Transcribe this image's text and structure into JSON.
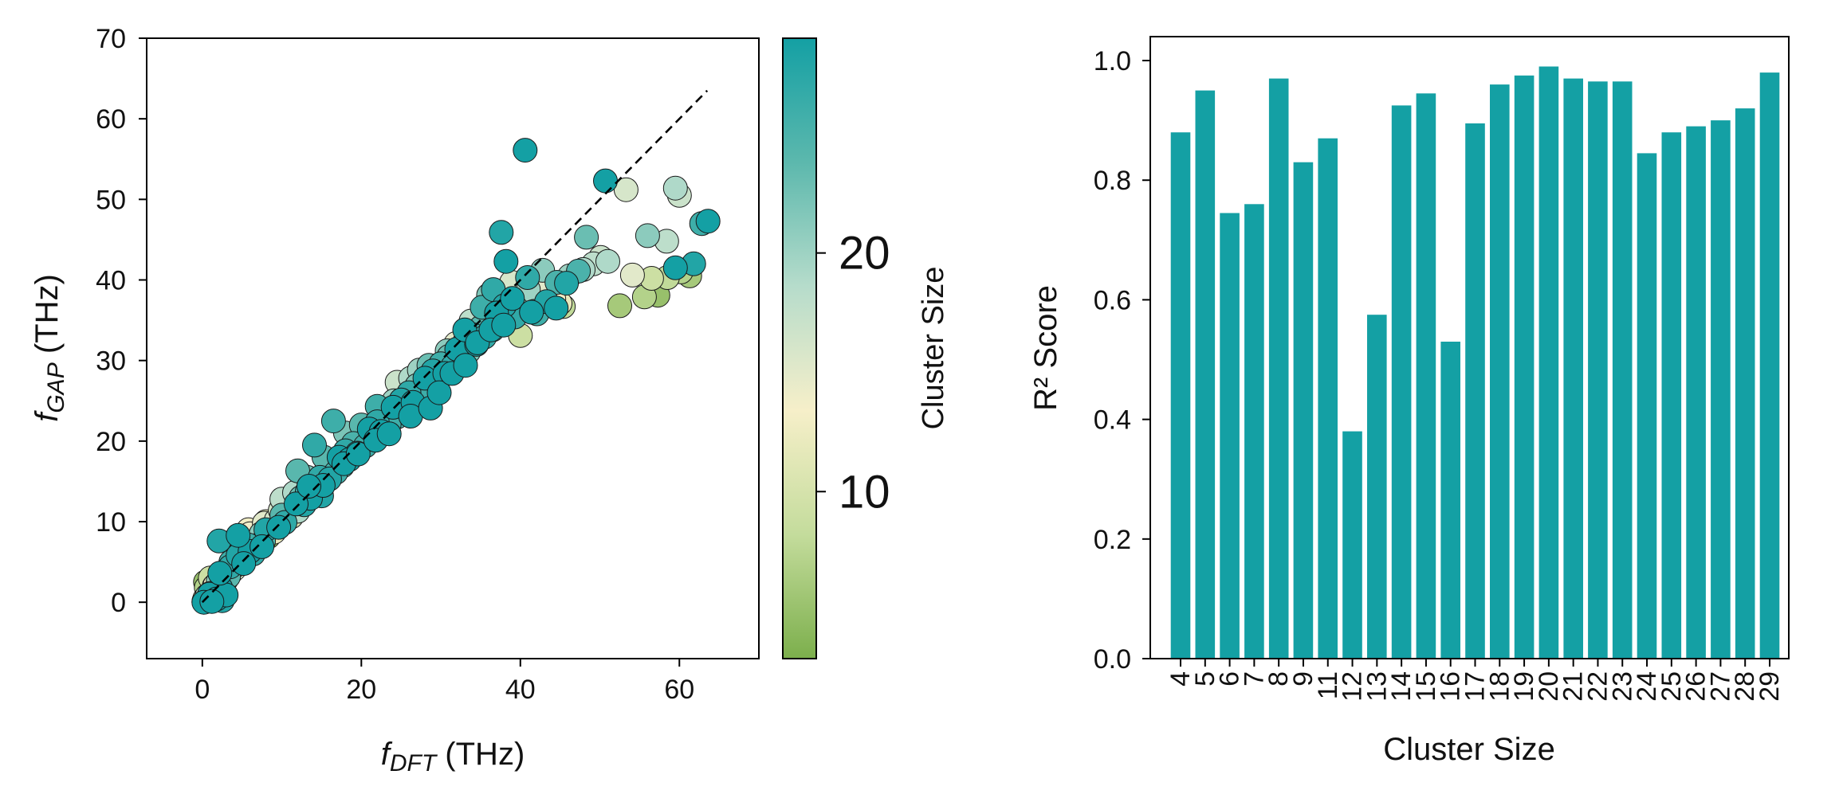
{
  "chart_data": [
    {
      "type": "scatter",
      "xlabel_main": "f",
      "xlabel_sub": "DFT",
      "xlabel_unit": " (THz)",
      "ylabel_main": "f",
      "ylabel_sub": "GAP",
      "ylabel_unit": " (THz)",
      "xlim": [
        -7,
        70
      ],
      "ylim": [
        -7,
        70
      ],
      "xticks": [
        0,
        20,
        40,
        60
      ],
      "yticks": [
        0,
        10,
        20,
        30,
        40,
        50,
        60,
        70
      ],
      "diagonal": [
        0,
        63.5
      ],
      "colorbar": {
        "label": "Cluster Size",
        "range": [
          3,
          29
        ],
        "ticks": [
          10,
          20
        ],
        "colors": [
          "#7caf4c",
          "#c4dc9c",
          "#f6efc9",
          "#b6dccb",
          "#5cb8ad",
          "#14a0a4"
        ]
      },
      "points": [
        [
          0.2,
          0.1,
          6
        ],
        [
          0.3,
          0.4,
          10
        ],
        [
          0.5,
          0.2,
          14
        ],
        [
          0.6,
          0.8,
          18
        ],
        [
          0.8,
          0.5,
          22
        ],
        [
          1.0,
          1.1,
          26
        ],
        [
          1.1,
          0.3,
          28
        ],
        [
          1.3,
          1.6,
          5
        ],
        [
          1.5,
          0.9,
          9
        ],
        [
          1.6,
          2.1,
          13
        ],
        [
          1.8,
          1.4,
          17
        ],
        [
          2.0,
          2.6,
          21
        ],
        [
          2.1,
          0.7,
          25
        ],
        [
          2.3,
          1.8,
          29
        ],
        [
          2.5,
          3.1,
          4
        ],
        [
          2.6,
          2.2,
          8
        ],
        [
          2.8,
          3.6,
          12
        ],
        [
          3.0,
          2.8,
          16
        ],
        [
          3.1,
          4.0,
          20
        ],
        [
          3.3,
          3.2,
          24
        ],
        [
          3.5,
          4.4,
          27
        ],
        [
          3.6,
          3.7,
          7
        ],
        [
          3.8,
          4.9,
          11
        ],
        [
          4.0,
          4.1,
          15
        ],
        [
          4.1,
          5.3,
          19
        ],
        [
          4.3,
          4.6,
          23
        ],
        [
          4.5,
          5.8,
          28
        ],
        [
          4.6,
          5.0,
          6
        ],
        [
          4.8,
          6.2,
          10
        ],
        [
          5.0,
          5.4,
          14
        ],
        [
          5.3,
          6.6,
          18
        ],
        [
          5.5,
          5.9,
          22
        ],
        [
          5.8,
          7.1,
          26
        ],
        [
          6.0,
          6.3,
          29
        ],
        [
          6.3,
          7.5,
          5
        ],
        [
          6.5,
          6.8,
          9
        ],
        [
          6.8,
          8.0,
          13
        ],
        [
          7.0,
          7.2,
          17
        ],
        [
          7.4,
          8.5,
          21
        ],
        [
          7.7,
          7.6,
          25
        ],
        [
          8.0,
          9.0,
          28
        ],
        [
          8.3,
          8.1,
          4
        ],
        [
          8.6,
          9.6,
          8
        ],
        [
          9.0,
          8.7,
          12
        ],
        [
          9.3,
          10.2,
          16
        ],
        [
          9.6,
          9.3,
          20
        ],
        [
          10.0,
          10.8,
          24
        ],
        [
          10.4,
          9.9,
          27
        ],
        [
          10.8,
          11.4,
          7
        ],
        [
          11.2,
          10.6,
          11
        ],
        [
          11.6,
          12.2,
          15
        ],
        [
          12.0,
          11.3,
          19
        ],
        [
          12.4,
          13.0,
          23
        ],
        [
          12.8,
          12.1,
          28
        ],
        [
          13.2,
          13.8,
          26
        ],
        [
          13.6,
          12.9,
          29
        ],
        [
          14.0,
          14.6,
          22
        ],
        [
          14.4,
          13.7,
          25
        ],
        [
          14.8,
          15.5,
          27
        ],
        [
          15.2,
          14.5,
          29
        ],
        [
          15.6,
          16.4,
          24
        ],
        [
          16.0,
          15.3,
          28
        ],
        [
          16.4,
          17.2,
          20
        ],
        [
          16.8,
          16.1,
          26
        ],
        [
          17.2,
          18.0,
          29
        ],
        [
          17.6,
          16.9,
          23
        ],
        [
          18.0,
          18.8,
          27
        ],
        [
          18.5,
          17.7,
          29
        ],
        [
          19.0,
          19.7,
          25
        ],
        [
          19.5,
          18.5,
          28
        ],
        [
          20.0,
          20.6,
          22
        ],
        [
          20.5,
          19.4,
          26
        ],
        [
          21.0,
          21.5,
          29
        ],
        [
          21.5,
          20.3,
          24
        ],
        [
          22.0,
          22.4,
          27
        ],
        [
          22.5,
          21.2,
          29
        ],
        [
          23.0,
          23.3,
          21
        ],
        [
          23.5,
          22.1,
          26
        ],
        [
          24.0,
          24.2,
          29
        ],
        [
          24.5,
          23.0,
          25
        ],
        [
          25.0,
          25.1,
          28
        ],
        [
          25.5,
          23.9,
          23
        ],
        [
          26.0,
          26.0,
          27
        ],
        [
          26.5,
          24.8,
          29
        ],
        [
          27.0,
          26.9,
          22
        ],
        [
          27.5,
          25.7,
          26
        ],
        [
          28.0,
          27.8,
          29
        ],
        [
          28.5,
          26.6,
          24
        ],
        [
          29.0,
          28.7,
          28
        ],
        [
          29.5,
          27.5,
          21
        ],
        [
          30.0,
          29.6,
          26
        ],
        [
          30.5,
          28.4,
          29
        ],
        [
          31.0,
          30.5,
          23
        ],
        [
          31.5,
          29.3,
          27
        ],
        [
          32.0,
          31.4,
          29
        ],
        [
          32.5,
          30.2,
          25
        ],
        [
          33.0,
          32.3,
          28
        ],
        [
          33.5,
          31.1,
          22
        ],
        [
          34.0,
          33.2,
          26
        ],
        [
          34.5,
          32.0,
          29
        ],
        [
          35.0,
          34.1,
          24
        ],
        [
          35.5,
          32.9,
          27
        ],
        [
          36.0,
          35.0,
          21
        ],
        [
          36.5,
          33.8,
          26
        ],
        [
          37.0,
          35.9,
          29
        ],
        [
          37.5,
          34.7,
          23
        ],
        [
          38.0,
          36.8,
          28
        ],
        [
          38.5,
          35.6,
          25
        ],
        [
          39.0,
          37.7,
          29
        ],
        [
          39.5,
          36.5,
          22
        ],
        [
          40.0,
          33.1,
          9
        ],
        [
          44.2,
          37.6,
          13
        ],
        [
          45.4,
          36.7,
          8
        ],
        [
          42.1,
          35.8,
          26
        ],
        [
          43.3,
          37.3,
          28
        ],
        [
          41.7,
          36.1,
          24
        ],
        [
          40.9,
          40.3,
          27
        ],
        [
          42.8,
          41.2,
          21
        ],
        [
          44.6,
          39.7,
          25
        ],
        [
          46.2,
          40.5,
          20
        ],
        [
          47.9,
          41.3,
          19
        ],
        [
          49.2,
          42.0,
          18
        ],
        [
          50.1,
          42.8,
          17
        ],
        [
          51.0,
          42.3,
          19
        ],
        [
          48.3,
          45.3,
          23
        ],
        [
          52.5,
          36.8,
          6
        ],
        [
          55.6,
          37.9,
          7
        ],
        [
          57.3,
          38.1,
          5
        ],
        [
          58.5,
          40.3,
          8
        ],
        [
          60.2,
          41.0,
          7
        ],
        [
          61.3,
          40.5,
          6
        ],
        [
          56.5,
          40.2,
          9
        ],
        [
          59.5,
          41.5,
          29
        ],
        [
          61.8,
          42.0,
          28
        ],
        [
          54.1,
          40.6,
          15
        ],
        [
          56.0,
          45.5,
          21
        ],
        [
          58.4,
          44.8,
          18
        ],
        [
          59.5,
          51.4,
          19
        ],
        [
          60.0,
          50.5,
          17
        ],
        [
          53.3,
          51.2,
          16
        ],
        [
          62.8,
          47.0,
          26
        ],
        [
          63.6,
          47.3,
          29
        ],
        [
          50.7,
          52.3,
          29
        ],
        [
          40.6,
          56.1,
          29
        ],
        [
          37.6,
          45.9,
          28
        ],
        [
          38.2,
          42.3,
          29
        ],
        [
          36.6,
          38.8,
          27
        ],
        [
          35.2,
          36.6,
          26
        ],
        [
          33.0,
          33.8,
          29
        ],
        [
          30.8,
          31.2,
          21
        ],
        [
          28.5,
          29.4,
          23
        ],
        [
          26.2,
          27.8,
          19
        ],
        [
          24.1,
          25.0,
          20
        ],
        [
          22.0,
          24.3,
          26
        ],
        [
          20.0,
          22.0,
          24
        ],
        [
          18.0,
          21.0,
          22
        ],
        [
          16.5,
          22.5,
          26
        ],
        [
          14.1,
          19.5,
          27
        ],
        [
          12.0,
          16.3,
          24
        ],
        [
          10.0,
          12.8,
          18
        ],
        [
          8.0,
          10.0,
          12
        ],
        [
          6.0,
          8.5,
          14
        ],
        [
          4.5,
          8.3,
          29
        ],
        [
          2.1,
          7.6,
          28
        ],
        [
          1.0,
          3.0,
          9
        ],
        [
          0.5,
          1.8,
          7
        ],
        [
          0.4,
          2.5,
          5
        ],
        [
          1.5,
          2.0,
          11
        ],
        [
          0.9,
          1.0,
          29
        ],
        [
          1.8,
          0.4,
          29
        ],
        [
          2.5,
          0.2,
          28
        ],
        [
          3.0,
          0.9,
          29
        ],
        [
          0.2,
          0.0,
          29
        ],
        [
          1.2,
          0.1,
          29
        ],
        [
          2.2,
          3.6,
          29
        ],
        [
          3.6,
          5.0,
          26
        ],
        [
          5.2,
          4.8,
          29
        ],
        [
          6.4,
          6.0,
          27
        ],
        [
          7.5,
          6.9,
          29
        ],
        [
          9.6,
          9.3,
          29
        ],
        [
          11.8,
          12.2,
          29
        ],
        [
          13.4,
          14.4,
          29
        ],
        [
          15.0,
          13.2,
          28
        ],
        [
          17.8,
          17.2,
          29
        ],
        [
          19.6,
          18.4,
          29
        ],
        [
          21.8,
          20.1,
          29
        ],
        [
          23.5,
          20.9,
          29
        ],
        [
          26.2,
          23.1,
          29
        ],
        [
          28.7,
          24.1,
          29
        ],
        [
          29.8,
          26.0,
          29
        ],
        [
          31.4,
          28.4,
          29
        ],
        [
          33.1,
          29.4,
          29
        ],
        [
          34.6,
          32.2,
          29
        ],
        [
          36.3,
          33.8,
          29
        ],
        [
          37.9,
          34.4,
          29
        ],
        [
          39.3,
          35.4,
          27
        ],
        [
          41.4,
          36.0,
          29
        ],
        [
          44.5,
          36.5,
          29
        ],
        [
          45.8,
          39.6,
          28
        ],
        [
          47.3,
          41.1,
          25
        ],
        [
          5.8,
          9.0,
          13
        ],
        [
          7.8,
          9.8,
          15
        ],
        [
          9.8,
          11.4,
          16
        ],
        [
          11.6,
          13.6,
          19
        ],
        [
          13.2,
          15.5,
          22
        ],
        [
          15.3,
          18.0,
          24
        ],
        [
          18.6,
          19.4,
          21
        ],
        [
          20.4,
          21.6,
          23
        ],
        [
          24.5,
          27.3,
          17
        ],
        [
          27.3,
          28.8,
          20
        ],
        [
          31.9,
          32.1,
          15
        ],
        [
          33.8,
          34.9,
          18
        ],
        [
          36.0,
          38.1,
          22
        ],
        [
          38.9,
          39.7,
          16
        ],
        [
          41.0,
          38.8,
          20
        ],
        [
          43.1,
          39.2,
          15
        ],
        [
          45.0,
          37.1,
          12
        ]
      ]
    },
    {
      "type": "bar",
      "xlabel": "Cluster Size",
      "ylabel": "R² Score",
      "ylim": [
        0,
        1.04
      ],
      "yticks": [
        0.0,
        0.2,
        0.4,
        0.6,
        0.8,
        1.0
      ],
      "ytick_labels": [
        "0.0",
        "0.2",
        "0.4",
        "0.6",
        "0.8",
        "1.0"
      ],
      "bar_color": "#14a0a4",
      "categories": [
        "4",
        "5",
        "6",
        "7",
        "8",
        "9",
        "11",
        "12",
        "13",
        "14",
        "15",
        "16",
        "17",
        "18",
        "19",
        "20",
        "21",
        "22",
        "23",
        "24",
        "25",
        "26",
        "27",
        "28",
        "29"
      ],
      "values": [
        0.88,
        0.95,
        0.745,
        0.76,
        0.97,
        0.83,
        0.87,
        0.38,
        0.575,
        0.925,
        0.945,
        0.53,
        0.895,
        0.96,
        0.975,
        0.99,
        0.97,
        0.965,
        0.965,
        0.845,
        0.88,
        0.89,
        0.9,
        0.92,
        0.98
      ]
    }
  ]
}
